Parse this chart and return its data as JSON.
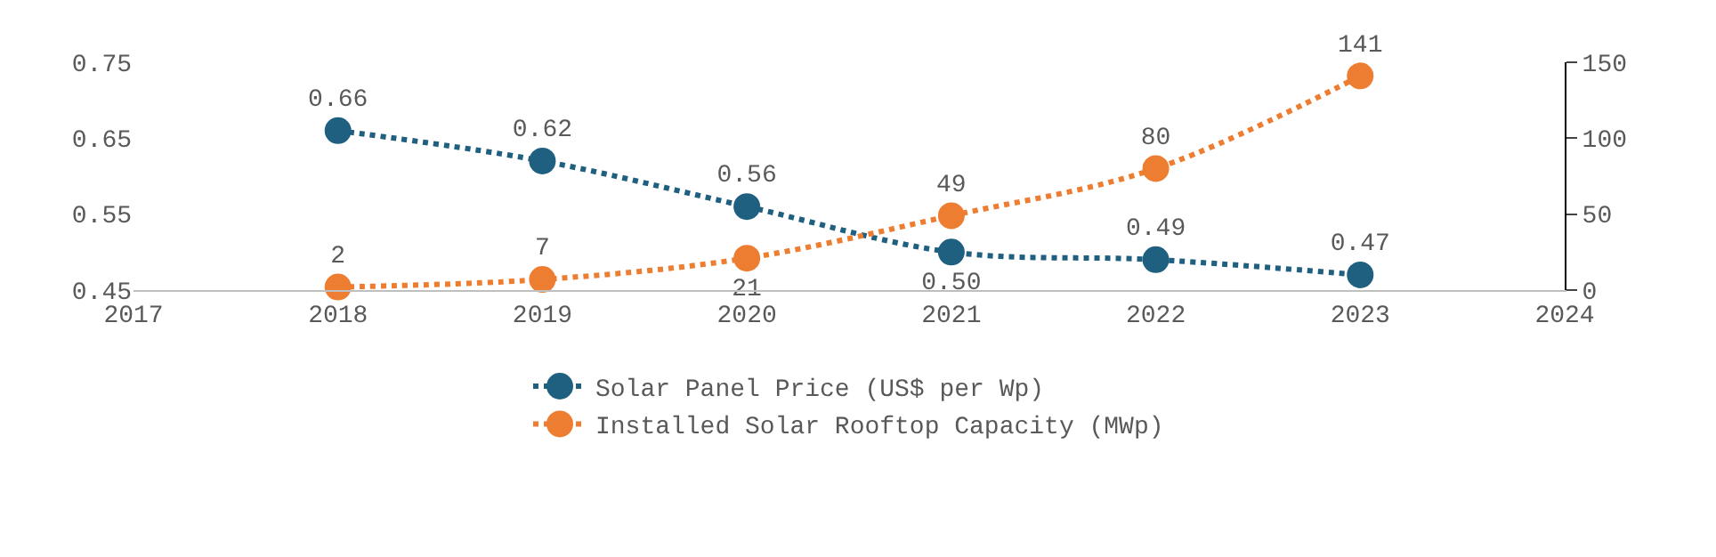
{
  "chart_data": {
    "type": "line",
    "x": [
      2018,
      2019,
      2020,
      2021,
      2022,
      2023
    ],
    "series": [
      {
        "name": "Solar Panel Price (US$ per Wp)",
        "color": "#1f5f7f",
        "values": [
          0.66,
          0.62,
          0.56,
          0.5,
          0.49,
          0.47
        ],
        "value_labels": [
          "0.66",
          "0.62",
          "0.56",
          "0.50",
          "0.49",
          "0.47"
        ]
      },
      {
        "name": "Installed Solar Rooftop Capacity (MWp)",
        "color": "#ed7d31",
        "values": [
          2,
          7,
          21,
          49,
          80,
          141
        ],
        "value_labels": [
          "2",
          "7",
          "21",
          "49",
          "80",
          "141"
        ],
        "axis": "y2"
      }
    ],
    "data_labels": true,
    "xlim": [
      2017,
      2024
    ],
    "xticks": [
      2017,
      2018,
      2019,
      2020,
      2021,
      2022,
      2023,
      2024
    ],
    "ylim": [
      0.45,
      0.75
    ],
    "yticks": [
      0.45,
      0.55,
      0.65,
      0.75
    ],
    "y2lim": [
      0,
      150
    ],
    "y2ticks": [
      0,
      50,
      100,
      150
    ],
    "marker": "circle",
    "line_style": "dotted",
    "legend": "bottom"
  }
}
